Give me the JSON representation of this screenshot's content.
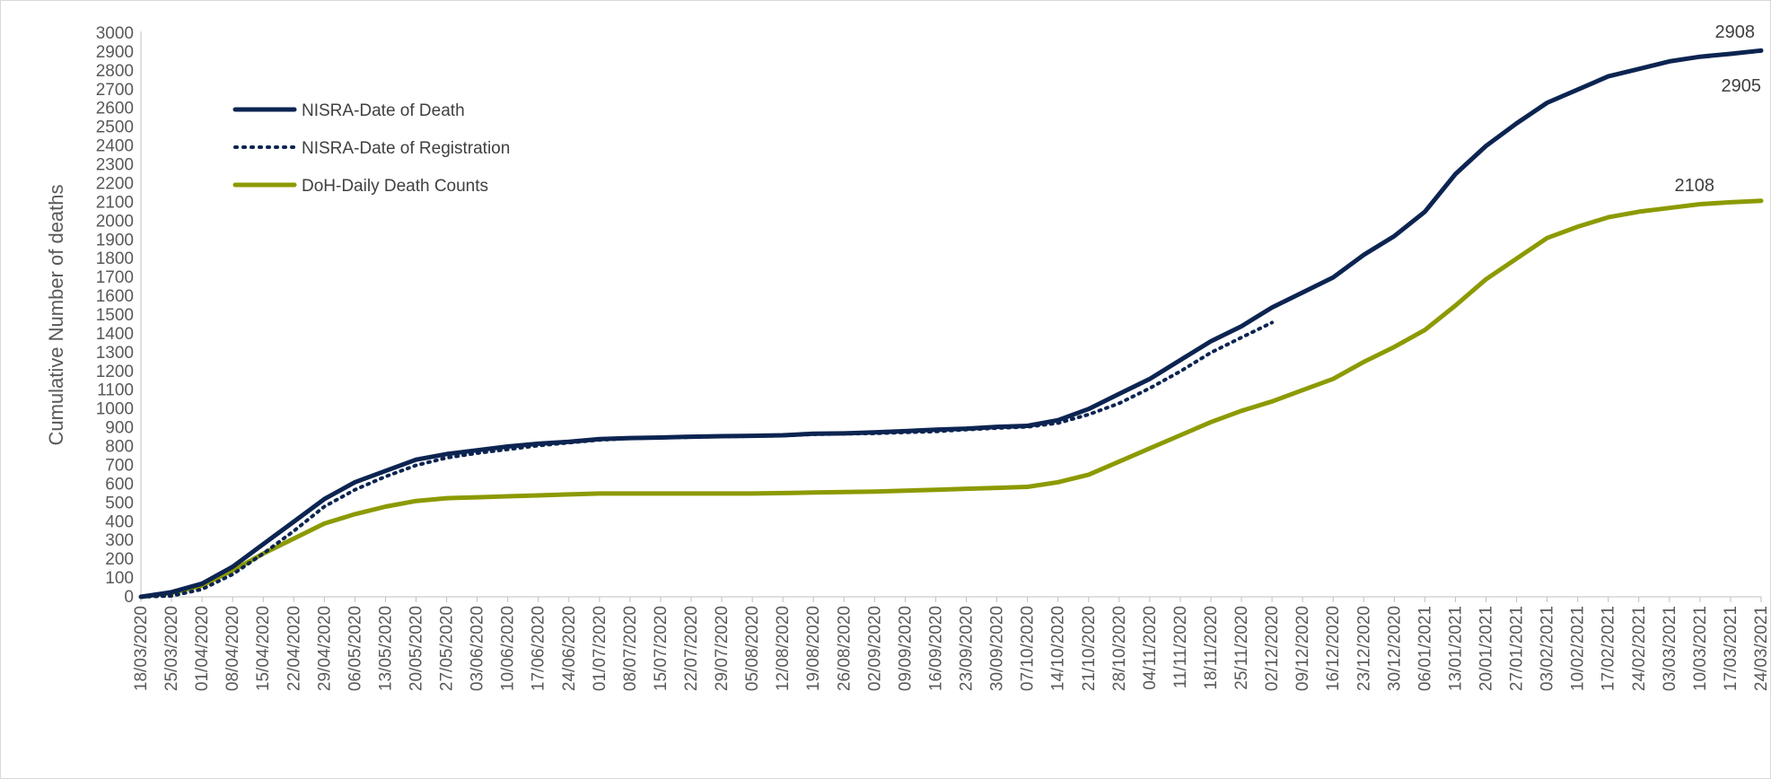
{
  "chart_data": {
    "type": "line",
    "title": "",
    "xlabel": "",
    "ylabel": "Cumulative Number of deaths",
    "ylim": [
      0,
      3000
    ],
    "ytick_step": 100,
    "grid": false,
    "legend_position": "top-left",
    "x_ticks": [
      "18/03/2020",
      "25/03/2020",
      "01/04/2020",
      "08/04/2020",
      "15/04/2020",
      "22/04/2020",
      "29/04/2020",
      "06/05/2020",
      "13/05/2020",
      "20/05/2020",
      "27/05/2020",
      "03/06/2020",
      "10/06/2020",
      "17/06/2020",
      "24/06/2020",
      "01/07/2020",
      "08/07/2020",
      "15/07/2020",
      "22/07/2020",
      "29/07/2020",
      "05/08/2020",
      "12/08/2020",
      "19/08/2020",
      "26/08/2020",
      "02/09/2020",
      "09/09/2020",
      "16/09/2020",
      "23/09/2020",
      "30/09/2020",
      "07/10/2020",
      "14/10/2020",
      "21/10/2020",
      "28/10/2020",
      "04/11/2020",
      "11/11/2020",
      "18/11/2020",
      "25/11/2020",
      "02/12/2020",
      "09/12/2020",
      "16/12/2020",
      "23/12/2020",
      "30/12/2020",
      "06/01/2021",
      "13/01/2021",
      "20/01/2021",
      "27/01/2021",
      "03/02/2021",
      "10/02/2021",
      "17/02/2021",
      "24/02/2021",
      "03/03/2021",
      "10/03/2021",
      "17/03/2021",
      "24/03/2021"
    ],
    "series": [
      {
        "name": "NISRA-Date of Death",
        "color": "#0c2451",
        "style": "solid",
        "end_label": "2908",
        "values": [
          0,
          25,
          70,
          160,
          280,
          400,
          520,
          610,
          670,
          730,
          760,
          780,
          800,
          815,
          825,
          840,
          845,
          848,
          852,
          855,
          857,
          860,
          868,
          870,
          875,
          882,
          890,
          895,
          905,
          910,
          940,
          1000,
          1080,
          1160,
          1260,
          1360,
          1440,
          1540,
          1620,
          1700,
          1820,
          1920,
          2050,
          2250,
          2400,
          2520,
          2630,
          2700,
          2770,
          2810,
          2850,
          2875,
          2890,
          2908
        ]
      },
      {
        "name": "NISRA-Date of Registration",
        "color": "#0c2451",
        "style": "dotted",
        "end_label": "2905",
        "values": [
          0,
          5,
          40,
          120,
          230,
          350,
          480,
          570,
          640,
          700,
          740,
          765,
          785,
          805,
          820,
          835,
          843,
          847,
          850,
          853,
          855,
          858,
          865,
          868,
          870,
          875,
          880,
          890,
          898,
          905,
          925,
          970,
          1030,
          1110,
          1200,
          1300,
          1380,
          1460,
          null,
          null,
          null,
          null,
          null,
          null,
          null,
          null,
          null,
          null,
          null,
          null,
          null,
          null,
          2890,
          2905
        ]
      },
      {
        "name": "DoH-Daily Death Counts",
        "color": "#8c9a00",
        "style": "solid",
        "end_label": "2108",
        "values": [
          0,
          20,
          60,
          140,
          230,
          310,
          390,
          440,
          480,
          510,
          525,
          530,
          535,
          540,
          545,
          550,
          550,
          550,
          550,
          550,
          550,
          552,
          555,
          558,
          560,
          565,
          570,
          575,
          580,
          585,
          610,
          650,
          720,
          790,
          860,
          930,
          990,
          1040,
          1100,
          1160,
          1250,
          1330,
          1420,
          1550,
          1690,
          1800,
          1910,
          1970,
          2020,
          2050,
          2070,
          2090,
          2100,
          2108
        ]
      }
    ]
  }
}
